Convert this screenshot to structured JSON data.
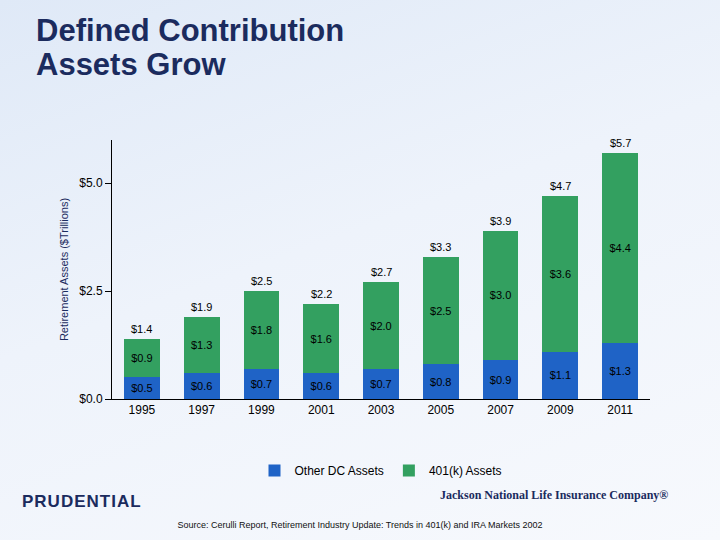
{
  "chart_data": {
    "type": "bar",
    "title": "Defined Contribution Assets Grow",
    "y_label": "Retirement Assets ($Trillions)",
    "categories": [
      "1995",
      "1997",
      "1999",
      "2001",
      "2003",
      "2005",
      "2007",
      "2009",
      "2011"
    ],
    "series": [
      {
        "name": "Other DC Assets",
        "color": "#1f63c6",
        "values": [
          0.5,
          0.6,
          0.7,
          0.6,
          0.7,
          0.8,
          0.9,
          1.1,
          1.3
        ],
        "value_labels": [
          "$0.5",
          "$0.6",
          "$0.7",
          "$0.6",
          "$0.7",
          "$0.8",
          "$0.9",
          "$1.1",
          "$1.3"
        ]
      },
      {
        "name": "401(k) Assets",
        "color": "#33a060",
        "values": [
          0.9,
          1.3,
          1.8,
          1.6,
          2.0,
          2.5,
          3.0,
          3.6,
          4.4
        ],
        "value_labels": [
          "$0.9",
          "$1.3",
          "$1.8",
          "$1.6",
          "$2.0",
          "$2.5",
          "$3.0",
          "$3.6",
          "$4.4"
        ]
      }
    ],
    "totals": [
      1.4,
      1.9,
      2.5,
      2.2,
      2.7,
      3.3,
      3.9,
      4.7,
      5.7
    ],
    "total_labels": [
      "$1.4",
      "$1.9",
      "$2.5",
      "$2.2",
      "$2.7",
      "$3.3",
      "$3.9",
      "$4.7",
      "$5.7"
    ],
    "ylim": [
      0,
      6
    ],
    "yticks": [
      {
        "value": 0,
        "label": "$0.0"
      },
      {
        "value": 2.5,
        "label": "$2.5"
      },
      {
        "value": 5,
        "label": "$5.0"
      }
    ],
    "grid": false,
    "stacked": true,
    "data_labels": true,
    "legend": "bottom",
    "source": "Source:  Cerulli Report, Retirement Industry Update:  Trends in 401(k) and IRA Markets 2002",
    "annotations": [
      "PRUDENTIAL",
      "Jackson National Life Insurance Company®"
    ]
  }
}
